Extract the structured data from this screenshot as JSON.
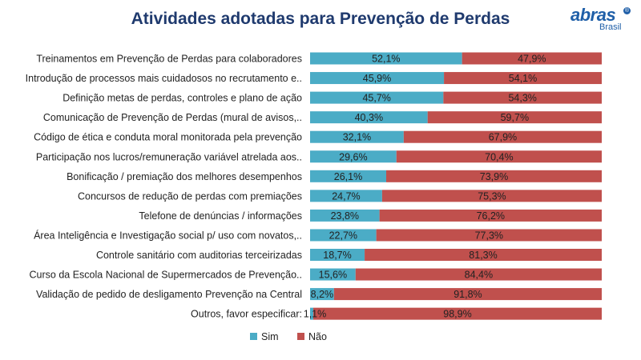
{
  "logo": {
    "brand": "abras",
    "country": "Brasil"
  },
  "colors": {
    "sim": "#4bacc6",
    "nao": "#c0504d",
    "title": "#1f3a6e"
  },
  "chart_data": {
    "type": "bar",
    "orientation": "horizontal",
    "stacked": true,
    "title": "Atividades adotadas para Prevenção de Perdas",
    "categories": [
      "Treinamentos em Prevenção de Perdas para colaboradores",
      "Introdução de processos mais cuidadosos no recrutamento e..",
      "Definição metas de perdas, controles e plano de ação",
      "Comunicação de Prevenção de Perdas (mural de avisos,..",
      "Código de ética e conduta moral monitorada pela prevenção",
      "Participação nos lucros/remuneração variável atrelada aos..",
      "Bonificação / premiação dos melhores desempenhos",
      "Concursos de redução de perdas com premiações",
      "Telefone de denúncias / informações",
      "Área Inteligência e Investigação social p/ uso com novatos,..",
      "Controle sanitário com auditorias terceirizadas",
      "Curso da Escola Nacional de Supermercados de Prevenção..",
      "Validação de pedido de desligamento Prevenção na Central",
      "Outros, favor especificar:"
    ],
    "series": [
      {
        "name": "Sim",
        "values": [
          52.1,
          45.9,
          45.7,
          40.3,
          32.1,
          29.6,
          26.1,
          24.7,
          23.8,
          22.7,
          18.7,
          15.6,
          8.2,
          1.1
        ],
        "labels": [
          "52,1%",
          "45,9%",
          "45,7%",
          "40,3%",
          "32,1%",
          "29,6%",
          "26,1%",
          "24,7%",
          "23,8%",
          "22,7%",
          "18,7%",
          "15,6%",
          "8,2%",
          "1,1%"
        ]
      },
      {
        "name": "Não",
        "values": [
          47.9,
          54.1,
          54.3,
          59.7,
          67.9,
          70.4,
          73.9,
          75.3,
          76.2,
          77.3,
          81.3,
          84.4,
          91.8,
          98.9
        ],
        "labels": [
          "47,9%",
          "54,1%",
          "54,3%",
          "59,7%",
          "67,9%",
          "70,4%",
          "73,9%",
          "75,3%",
          "76,2%",
          "77,3%",
          "81,3%",
          "84,4%",
          "91,8%",
          "98,9%"
        ]
      }
    ],
    "xlim": [
      0,
      100
    ],
    "grid": false,
    "legend": "bottom"
  }
}
